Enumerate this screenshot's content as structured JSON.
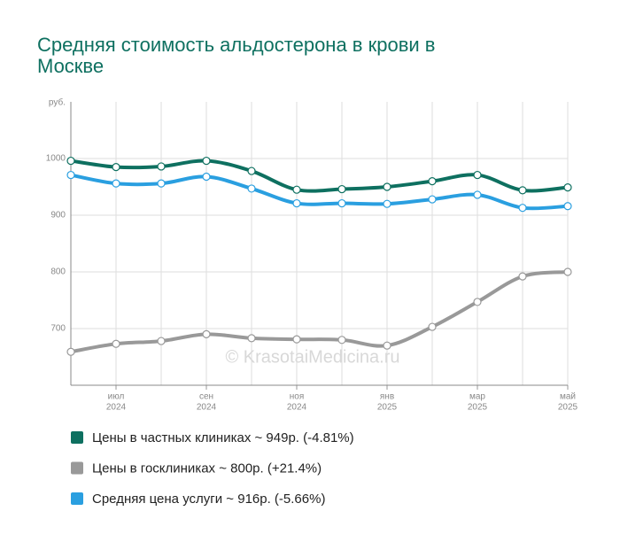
{
  "chart_data": {
    "type": "line",
    "title": "Средняя стоимость альдостерона в крови в Москве",
    "y_label": "руб.",
    "watermark": "© KrasotaiMedicina.ru",
    "categories": [
      null,
      "июл",
      null,
      "сен",
      null,
      "ноя",
      null,
      "янв",
      null,
      "мар",
      null,
      "май"
    ],
    "category_years": [
      null,
      "2024",
      null,
      "2024",
      null,
      "2024",
      null,
      "2025",
      null,
      "2025",
      null,
      "2025"
    ],
    "ylim": [
      600,
      1100
    ],
    "yticks": [
      700,
      800,
      900,
      1000
    ],
    "grid": true,
    "series": [
      {
        "name": "Цены в частных клиниках ~ 949р. (-4.81%)",
        "color": "#0e7060",
        "values": [
          996,
          985,
          986,
          996,
          978,
          945,
          946,
          950,
          960,
          971,
          944,
          949
        ]
      },
      {
        "name": "Цены в госклиниках ~ 800р. (+21.4%)",
        "color": "#999999",
        "values": [
          659,
          673,
          678,
          690,
          683,
          681,
          680,
          670,
          703,
          747,
          792,
          800
        ]
      },
      {
        "name": "Средняя цена услуги ~ 916р. (-5.66%)",
        "color": "#2a9fe0",
        "values": [
          971,
          956,
          956,
          968,
          947,
          921,
          921,
          920,
          928,
          936,
          913,
          916
        ]
      }
    ]
  }
}
